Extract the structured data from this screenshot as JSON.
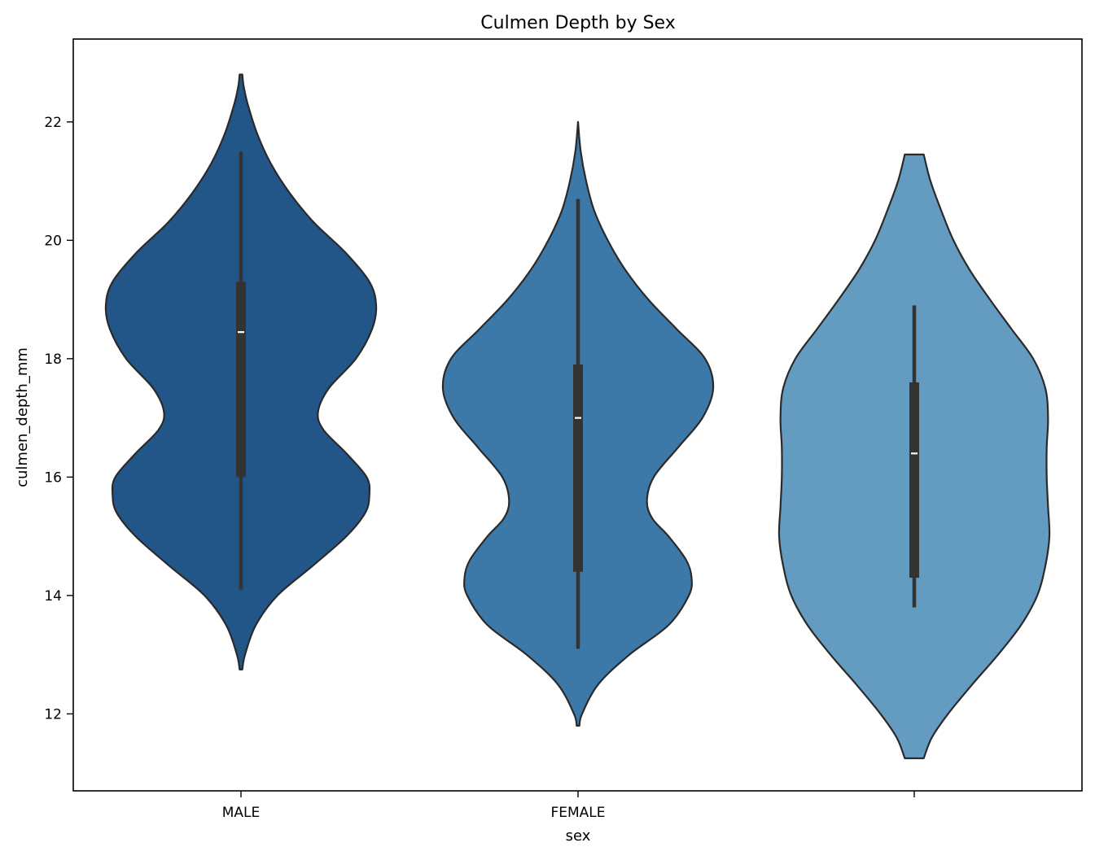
{
  "chart_data": {
    "type": "violin",
    "title": "Culmen Depth by Sex",
    "xlabel": "sex",
    "ylabel": "culmen_depth_mm",
    "ylim": [
      10.7,
      23.4
    ],
    "yticks": [
      12,
      14,
      16,
      18,
      20,
      22
    ],
    "grid": false,
    "legend": "none",
    "categories": [
      "MALE",
      "FEMALE",
      ""
    ],
    "colors": [
      "#225588",
      "#3d79a8",
      "#639bc1"
    ],
    "box_color": "#333333",
    "median_color": "#ffffff",
    "violins": [
      {
        "category": "MALE",
        "fill": "#225588",
        "range": [
          12.75,
          22.8
        ],
        "whisker": [
          14.1,
          21.5
        ],
        "q1": 16.0,
        "median": 18.45,
        "q3": 19.3,
        "density": [
          [
            12.75,
            0.01
          ],
          [
            13.0,
            0.03
          ],
          [
            13.5,
            0.11
          ],
          [
            14.0,
            0.27
          ],
          [
            14.5,
            0.53
          ],
          [
            15.0,
            0.78
          ],
          [
            15.4,
            0.92
          ],
          [
            15.7,
            0.95
          ],
          [
            16.0,
            0.93
          ],
          [
            16.4,
            0.78
          ],
          [
            16.8,
            0.61
          ],
          [
            17.1,
            0.57
          ],
          [
            17.5,
            0.65
          ],
          [
            18.0,
            0.85
          ],
          [
            18.5,
            0.97
          ],
          [
            18.9,
            1.0
          ],
          [
            19.3,
            0.95
          ],
          [
            19.8,
            0.77
          ],
          [
            20.3,
            0.54
          ],
          [
            20.8,
            0.36
          ],
          [
            21.3,
            0.22
          ],
          [
            21.8,
            0.12
          ],
          [
            22.3,
            0.05
          ],
          [
            22.6,
            0.02
          ],
          [
            22.8,
            0.01
          ]
        ]
      },
      {
        "category": "FEMALE",
        "fill": "#3d79a8",
        "range": [
          11.8,
          22.0
        ],
        "whisker": [
          13.1,
          20.7
        ],
        "q1": 14.4,
        "median": 17.0,
        "q3": 17.9,
        "density": [
          [
            11.8,
            0.01
          ],
          [
            12.0,
            0.03
          ],
          [
            12.5,
            0.15
          ],
          [
            13.0,
            0.38
          ],
          [
            13.5,
            0.67
          ],
          [
            14.0,
            0.82
          ],
          [
            14.3,
            0.84
          ],
          [
            14.6,
            0.8
          ],
          [
            15.0,
            0.67
          ],
          [
            15.3,
            0.55
          ],
          [
            15.6,
            0.51
          ],
          [
            16.0,
            0.56
          ],
          [
            16.5,
            0.74
          ],
          [
            17.0,
            0.92
          ],
          [
            17.5,
            1.0
          ],
          [
            18.0,
            0.94
          ],
          [
            18.5,
            0.73
          ],
          [
            19.0,
            0.52
          ],
          [
            19.5,
            0.35
          ],
          [
            20.0,
            0.22
          ],
          [
            20.5,
            0.12
          ],
          [
            21.0,
            0.06
          ],
          [
            21.5,
            0.02
          ],
          [
            22.0,
            0.0
          ]
        ]
      },
      {
        "category": "",
        "fill": "#639bc1",
        "range": [
          11.25,
          21.45
        ],
        "whisker": [
          13.8,
          18.9
        ],
        "q1": 14.3,
        "median": 16.4,
        "q3": 17.6,
        "density": [
          [
            11.25,
            0.07
          ],
          [
            11.6,
            0.13
          ],
          [
            12.0,
            0.25
          ],
          [
            12.5,
            0.43
          ],
          [
            13.0,
            0.62
          ],
          [
            13.5,
            0.79
          ],
          [
            14.0,
            0.91
          ],
          [
            14.5,
            0.97
          ],
          [
            15.0,
            1.0
          ],
          [
            15.5,
            0.99
          ],
          [
            16.0,
            0.98
          ],
          [
            16.5,
            0.98
          ],
          [
            17.0,
            0.99
          ],
          [
            17.5,
            0.97
          ],
          [
            18.0,
            0.88
          ],
          [
            18.5,
            0.72
          ],
          [
            19.0,
            0.56
          ],
          [
            19.5,
            0.41
          ],
          [
            20.0,
            0.29
          ],
          [
            20.5,
            0.2
          ],
          [
            21.0,
            0.12
          ],
          [
            21.45,
            0.07
          ]
        ]
      }
    ]
  }
}
